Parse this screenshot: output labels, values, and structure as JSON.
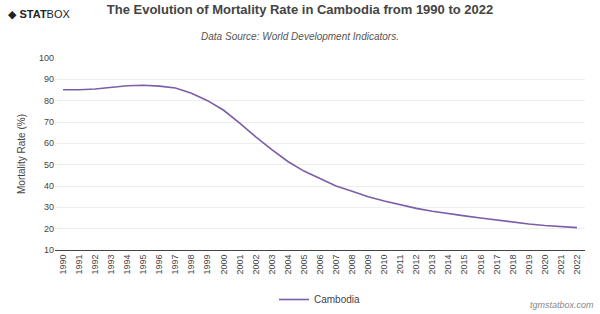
{
  "chart_data": {
    "type": "line",
    "title": "The Evolution of Mortality Rate in Cambodia from 1990 to 2022",
    "subtitle": "Data Source: World Development Indicators.",
    "y_label": "Mortality Rate (%)",
    "x": [
      1990,
      1991,
      1992,
      1993,
      1994,
      1995,
      1996,
      1997,
      1998,
      1999,
      2000,
      2001,
      2002,
      2003,
      2004,
      2005,
      2006,
      2007,
      2008,
      2009,
      2010,
      2011,
      2012,
      2013,
      2014,
      2015,
      2016,
      2017,
      2018,
      2019,
      2020,
      2021,
      2022
    ],
    "series": [
      {
        "name": "Cambodia",
        "color": "#7b5ea7",
        "values": [
          85.1,
          85.1,
          85.5,
          86.4,
          87.0,
          87.2,
          86.8,
          85.9,
          83.5,
          80.0,
          75.5,
          69.5,
          63.0,
          57.0,
          51.5,
          47.0,
          43.5,
          40.0,
          37.5,
          35.0,
          33.0,
          31.2,
          29.5,
          28.2,
          27.0,
          26.0,
          25.0,
          24.0,
          23.0,
          22.2,
          21.5,
          21.0,
          20.5
        ]
      }
    ],
    "xlim": [
      1989.5,
      2022.5
    ],
    "xticks": [
      1990,
      1991,
      1992,
      1993,
      1994,
      1995,
      1996,
      1997,
      1998,
      1999,
      2000,
      2001,
      2002,
      2003,
      2004,
      2005,
      2006,
      2007,
      2008,
      2009,
      2010,
      2011,
      2012,
      2013,
      2014,
      2015,
      2016,
      2017,
      2018,
      2019,
      2020,
      2021,
      2022
    ],
    "ylim": [
      10,
      100
    ],
    "yticks": [
      10,
      20,
      30,
      40,
      50,
      60,
      70,
      80,
      90,
      100
    ],
    "grid": true,
    "legend": "bottom",
    "annotations": [
      "◆ STAT",
      "BOX",
      "tgmstatbox.com"
    ]
  }
}
